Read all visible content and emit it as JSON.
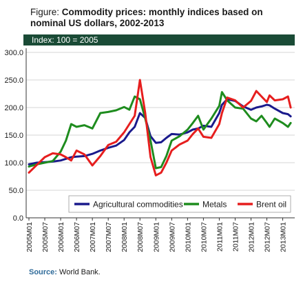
{
  "figure": {
    "prefix": "Figure:",
    "title_line1": "Commodity prices: monthly indices based on",
    "title_line2": "nominal US dollars, 2002-2013",
    "index_note": "Index: 100 = 2005",
    "source_label": "Source:",
    "source_text": "World Bank."
  },
  "chart_data": {
    "type": "line",
    "title": "Commodity prices: monthly indices based on nominal US dollars, 2002-2013",
    "subtitle": "Index: 100 = 2005",
    "xlabel": "",
    "ylabel": "",
    "ylim": [
      0,
      300
    ],
    "yticks": [
      "0.0",
      "50.0",
      "100.0",
      "150.0",
      "200.0",
      "250.0",
      "300.0"
    ],
    "xticks": [
      "2005M01",
      "2005M07",
      "2006M01",
      "2006M07",
      "2007M01",
      "2007M07",
      "2008M01",
      "2008M07",
      "2009M01",
      "2009M07",
      "2010M01",
      "2010M07",
      "2011M01",
      "2011M07",
      "2012M01",
      "2012M07",
      "2013M01"
    ],
    "grid": "horizontal",
    "legend_position": "bottom-center",
    "x": [
      "2005-01",
      "2005-04",
      "2005-07",
      "2005-10",
      "2006-01",
      "2006-03",
      "2006-05",
      "2006-07",
      "2006-10",
      "2007-01",
      "2007-04",
      "2007-07",
      "2007-10",
      "2008-01",
      "2008-03",
      "2008-05",
      "2008-07",
      "2008-09",
      "2008-11",
      "2009-01",
      "2009-03",
      "2009-05",
      "2009-07",
      "2009-10",
      "2010-01",
      "2010-03",
      "2010-05",
      "2010-07",
      "2010-10",
      "2011-01",
      "2011-02",
      "2011-04",
      "2011-07",
      "2011-10",
      "2012-01",
      "2012-03",
      "2012-05",
      "2012-07",
      "2012-08",
      "2012-10",
      "2013-01",
      "2013-03",
      "2013-04"
    ],
    "series": [
      {
        "name": "Agricultural commodities",
        "color": "#1a1a8c",
        "values": [
          97,
          100,
          101,
          102,
          104,
          107,
          110,
          111,
          112,
          116,
          122,
          127,
          131,
          141,
          155,
          165,
          190,
          181,
          148,
          136,
          137,
          145,
          152,
          151,
          155,
          160,
          162,
          167,
          165,
          190,
          205,
          215,
          212,
          202,
          196,
          200,
          202,
          205,
          204,
          198,
          190,
          188,
          184
        ]
      },
      {
        "name": "Metals",
        "color": "#1e8c1e",
        "values": [
          93,
          97,
          100,
          103,
          120,
          140,
          170,
          165,
          168,
          162,
          190,
          192,
          195,
          201,
          196,
          220,
          215,
          180,
          140,
          90,
          92,
          112,
          140,
          148,
          160,
          172,
          185,
          160,
          180,
          203,
          228,
          213,
          200,
          198,
          180,
          175,
          185,
          172,
          165,
          180,
          172,
          165,
          172
        ]
      },
      {
        "name": "Brent oil",
        "color": "#e61e1e",
        "values": [
          82,
          96,
          110,
          117,
          115,
          110,
          104,
          122,
          115,
          95,
          112,
          132,
          138,
          155,
          170,
          185,
          250,
          190,
          110,
          77,
          82,
          100,
          122,
          133,
          140,
          152,
          162,
          147,
          145,
          170,
          190,
          218,
          213,
          200,
          212,
          230,
          220,
          210,
          222,
          213,
          215,
          220,
          200
        ]
      }
    ]
  }
}
